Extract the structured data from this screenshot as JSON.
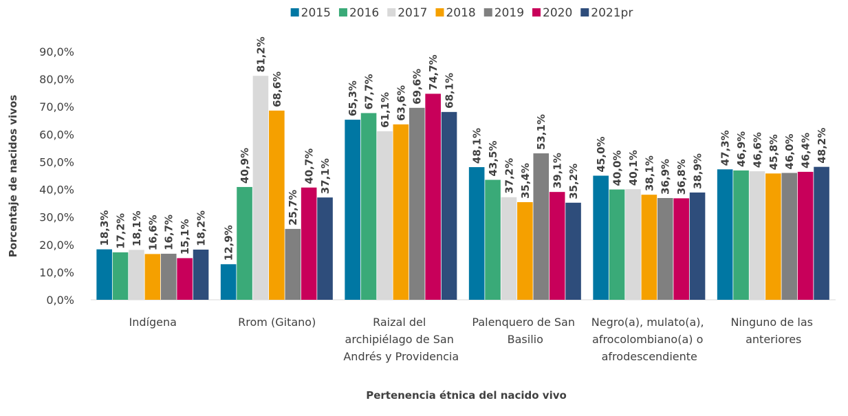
{
  "chart_data": {
    "type": "bar",
    "x_label": "Pertenencia étnica del nacido vivo",
    "y_label": "Porcentaje de nacidos vivos",
    "categories": [
      "Indígena",
      "Rrom (Gitano)",
      "Raizal del archipiélago de San Andrés y Providencia",
      "Palenquero de San Basilio",
      "Negro(a), mulato(a), afrocolombiano(a) o afrodescendiente",
      "Ninguno de las anteriores"
    ],
    "ylim": [
      0,
      90
    ],
    "yticks": [
      {
        "value": 0,
        "label": "0,0%"
      },
      {
        "value": 10,
        "label": "10,0%"
      },
      {
        "value": 20,
        "label": "20,0%"
      },
      {
        "value": 30,
        "label": "30,0%"
      },
      {
        "value": 40,
        "label": "40,0%"
      },
      {
        "value": 50,
        "label": "50,0%"
      },
      {
        "value": 60,
        "label": "60,0%"
      },
      {
        "value": 70,
        "label": "70,0%"
      },
      {
        "value": 80,
        "label": "80,0%"
      },
      {
        "value": 90,
        "label": "90,0%"
      }
    ],
    "grid": false,
    "legend": "top",
    "series": [
      {
        "name": "2015",
        "color": "#0077a3",
        "label_color": "#1f4e79",
        "values": [
          18.3,
          12.9,
          65.3,
          48.1,
          45.0,
          47.3
        ],
        "value_labels": [
          "18,3%",
          "12,9%",
          "65,3%",
          "48,1%",
          "45,0%",
          "47,3%"
        ]
      },
      {
        "name": "2016",
        "color": "#3aaa78",
        "label_color": "#3a8fa0",
        "values": [
          17.2,
          40.9,
          67.7,
          43.5,
          40.0,
          46.9
        ],
        "value_labels": [
          "17,2%",
          "40,9%",
          "67,7%",
          "43,5%",
          "40,0%",
          "46,9%"
        ]
      },
      {
        "name": "2017",
        "color": "#d9d9d9",
        "label_color": "#404040",
        "values": [
          18.1,
          81.2,
          61.1,
          37.2,
          40.1,
          46.6
        ],
        "value_labels": [
          "18,1%",
          "81,2%",
          "61,1%",
          "37,2%",
          "40,1%",
          "46,6%"
        ]
      },
      {
        "name": "2018",
        "color": "#f5a000",
        "label_color": "#f0a000",
        "values": [
          16.6,
          68.6,
          63.6,
          35.4,
          38.1,
          45.8
        ],
        "value_labels": [
          "16,6%",
          "68,6%",
          "63,6%",
          "35,4%",
          "38,1%",
          "45,8%"
        ]
      },
      {
        "name": "2019",
        "color": "#808080",
        "label_color": "#000000",
        "values": [
          16.7,
          25.7,
          69.6,
          53.1,
          36.9,
          46.0
        ],
        "value_labels": [
          "16,7%",
          "25,7%",
          "69,6%",
          "53,1%",
          "36,9%",
          "46,0%"
        ]
      },
      {
        "name": "2020",
        "color": "#c8005a",
        "label_color": "#c8005a",
        "values": [
          15.1,
          40.7,
          74.7,
          39.1,
          36.8,
          46.4
        ],
        "value_labels": [
          "15,1%",
          "40,7%",
          "74,7%",
          "39,1%",
          "36,8%",
          "46,4%"
        ]
      },
      {
        "name": "2021pr",
        "color": "#2e4d7b",
        "label_color": "#1f3a5f",
        "values": [
          18.2,
          37.1,
          68.1,
          35.2,
          38.9,
          48.2
        ],
        "value_labels": [
          "18,2%",
          "37,1%",
          "68,1%",
          "35,2%",
          "38,9%",
          "48,2%"
        ]
      }
    ]
  }
}
